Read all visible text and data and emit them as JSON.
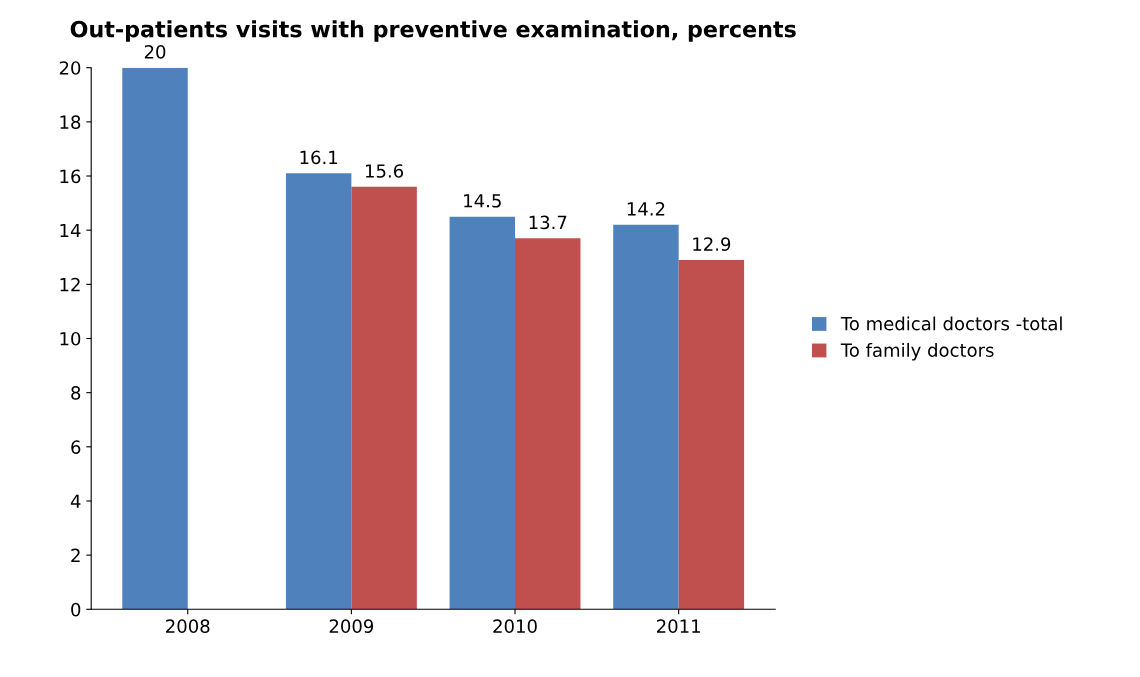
{
  "chart_data": {
    "type": "bar",
    "title": "Out-patients visits with preventive examination, percents",
    "categories": [
      "2008",
      "2009",
      "2010",
      "2011"
    ],
    "series": [
      {
        "name": "To medical doctors -total",
        "color": "#4f81bd",
        "values": [
          20,
          16.1,
          14.5,
          14.2
        ]
      },
      {
        "name": "To family doctors",
        "color": "#c0504d",
        "values": [
          null,
          15.6,
          13.7,
          12.9
        ]
      }
    ],
    "ylim": [
      0,
      20
    ],
    "yticks": [
      0,
      2,
      4,
      6,
      8,
      10,
      12,
      14,
      16,
      18,
      20
    ],
    "grid": false,
    "legend": "right",
    "data_labels": true
  }
}
